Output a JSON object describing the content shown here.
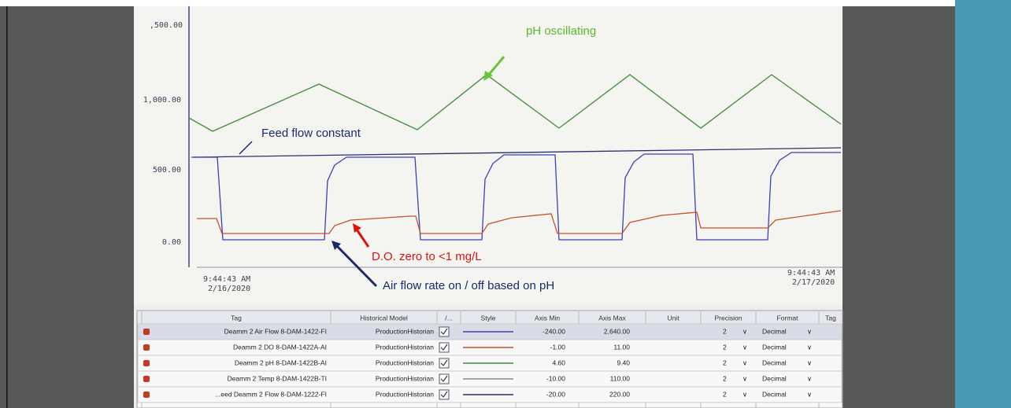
{
  "chart_view": {
    "y_axis_labels": [
      ",500.00",
      "1,000.00",
      "500.00",
      "0.00"
    ],
    "time_start": [
      "9:44:43 AM",
      "2/16/2020"
    ],
    "time_end": [
      "9:44:43 AM",
      "2/17/2020"
    ]
  },
  "annotations": {
    "ph": "pH oscillating",
    "feed": "Feed flow constant",
    "do": "D.O. zero to <1 mg/L",
    "air": "Air flow rate on / off based on pH"
  },
  "table": {
    "columns": [
      "Tag",
      "Historical Model",
      "/...",
      "Style",
      "Axis Min",
      "Axis Max",
      "Unit",
      "Precision",
      "Format",
      "Tag"
    ],
    "rows": [
      [
        "Deamm 2 Air Flow 8-DAM-1422-FI",
        "ProductionHistorian",
        "-240.00",
        "2,640.00",
        "2",
        "Decimal"
      ],
      [
        "Deamm 2 DO 8-DAM-1422A-AI",
        "ProductionHistorian",
        "-1.00",
        "11.00",
        "2",
        "Decimal"
      ],
      [
        "Deamm 2 pH 8-DAM-1422B-AI",
        "ProductionHistorian",
        "4.60",
        "9.40",
        "2",
        "Decimal"
      ],
      [
        "Deamm 2 Temp 8-DAM-1422B-TI",
        "ProductionHistorian",
        "-10.00",
        "110.00",
        "2",
        "Decimal"
      ],
      [
        "...eed Deamm 2 Flow 8-DAM-1222-FI",
        "ProductionHistorian",
        "-20.00",
        "220.00",
        "2",
        "Decimal"
      ]
    ]
  }
}
